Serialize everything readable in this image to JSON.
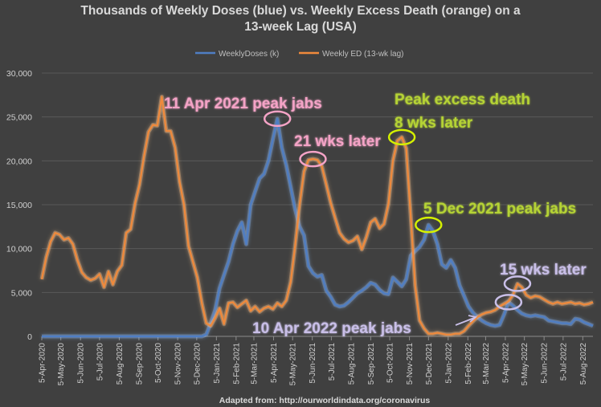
{
  "chart_data": {
    "type": "line",
    "title_line1": "Thousands of Weekly Doses (blue) vs. Weekly Excess Death (orange) on a",
    "title_line2": "13-week Lag (USA)",
    "source": "Adapted from: http://ourworldindata.org/coronavirus",
    "ylim": [
      0,
      30000
    ],
    "yticks": [
      "0",
      "5,000",
      "10,000",
      "15,000",
      "20,000",
      "25,000",
      "30,000"
    ],
    "ytick_values": [
      0,
      5000,
      10000,
      15000,
      20000,
      25000,
      30000
    ],
    "grid": "horizontal",
    "legend_position": "top-center",
    "x_start": "2020-04-05",
    "x_end": "2022-08-21",
    "xticks": [
      "5-Apr-2020",
      "5-May-2020",
      "5-Jun-2020",
      "5-Jul-2020",
      "5-Aug-2020",
      "5-Sep-2020",
      "5-Oct-2020",
      "5-Nov-2020",
      "5-Dec-2020",
      "5-Jan-2021",
      "5-Feb-2021",
      "5-Mar-2021",
      "5-Apr-2021",
      "5-May-2021",
      "5-Jun-2021",
      "5-Jul-2021",
      "5-Aug-2021",
      "5-Sep-2021",
      "5-Oct-2021",
      "5-Nov-2021",
      "5-Dec-2021",
      "5-Jan-2022",
      "5-Feb-2022",
      "5-Mar-2022",
      "5-Apr-2022",
      "5-May-2022",
      "5-Jun-2022",
      "5-Jul-2022",
      "5-Aug-2022"
    ],
    "xtick_dates": [
      "2020-04-05",
      "2020-05-05",
      "2020-06-05",
      "2020-07-05",
      "2020-08-05",
      "2020-09-05",
      "2020-10-05",
      "2020-11-05",
      "2020-12-05",
      "2021-01-05",
      "2021-02-05",
      "2021-03-05",
      "2021-04-05",
      "2021-05-05",
      "2021-06-05",
      "2021-07-05",
      "2021-08-05",
      "2021-09-05",
      "2021-10-05",
      "2021-11-05",
      "2021-12-05",
      "2022-01-05",
      "2022-02-05",
      "2022-03-05",
      "2022-04-05",
      "2022-05-05",
      "2022-06-05",
      "2022-07-05",
      "2022-08-05"
    ],
    "series": [
      {
        "name": "WeeklyDoses (k)",
        "color": "#4f7ec4",
        "glow": "#8ab4f0",
        "points": [
          [
            "2020-04-05",
            0
          ],
          [
            "2020-12-13",
            0
          ],
          [
            "2020-12-20",
            200
          ],
          [
            "2020-12-27",
            1500
          ],
          [
            "2021-01-03",
            3000
          ],
          [
            "2021-01-10",
            5500
          ],
          [
            "2021-01-17",
            7000
          ],
          [
            "2021-01-24",
            8500
          ],
          [
            "2021-01-31",
            10500
          ],
          [
            "2021-02-07",
            12000
          ],
          [
            "2021-02-14",
            13000
          ],
          [
            "2021-02-21",
            10500
          ],
          [
            "2021-02-28",
            15000
          ],
          [
            "2021-03-07",
            16500
          ],
          [
            "2021-03-14",
            18000
          ],
          [
            "2021-03-21",
            18500
          ],
          [
            "2021-03-28",
            20000
          ],
          [
            "2021-04-04",
            22500
          ],
          [
            "2021-04-11",
            24800
          ],
          [
            "2021-04-18",
            21500
          ],
          [
            "2021-04-25",
            19500
          ],
          [
            "2021-05-02",
            17000
          ],
          [
            "2021-05-09",
            14500
          ],
          [
            "2021-05-16",
            12500
          ],
          [
            "2021-05-23",
            11500
          ],
          [
            "2021-05-30",
            8000
          ],
          [
            "2021-06-06",
            7200
          ],
          [
            "2021-06-13",
            6800
          ],
          [
            "2021-06-20",
            7000
          ],
          [
            "2021-06-27",
            5200
          ],
          [
            "2021-07-04",
            4500
          ],
          [
            "2021-07-11",
            3600
          ],
          [
            "2021-07-18",
            3400
          ],
          [
            "2021-07-25",
            3500
          ],
          [
            "2021-08-01",
            3900
          ],
          [
            "2021-08-08",
            4400
          ],
          [
            "2021-08-15",
            4900
          ],
          [
            "2021-08-22",
            5200
          ],
          [
            "2021-08-29",
            5600
          ],
          [
            "2021-09-05",
            6100
          ],
          [
            "2021-09-12",
            5900
          ],
          [
            "2021-09-19",
            5300
          ],
          [
            "2021-09-26",
            4900
          ],
          [
            "2021-10-03",
            4800
          ],
          [
            "2021-10-10",
            6700
          ],
          [
            "2021-10-17",
            6200
          ],
          [
            "2021-10-24",
            5700
          ],
          [
            "2021-10-31",
            6500
          ],
          [
            "2021-11-07",
            9200
          ],
          [
            "2021-11-14",
            9700
          ],
          [
            "2021-11-21",
            10200
          ],
          [
            "2021-11-28",
            11000
          ],
          [
            "2021-12-05",
            12700
          ],
          [
            "2021-12-12",
            12000
          ],
          [
            "2021-12-19",
            10500
          ],
          [
            "2021-12-26",
            8200
          ],
          [
            "2022-01-02",
            7800
          ],
          [
            "2022-01-09",
            8700
          ],
          [
            "2022-01-16",
            7800
          ],
          [
            "2022-01-23",
            5800
          ],
          [
            "2022-01-30",
            4600
          ],
          [
            "2022-02-06",
            3400
          ],
          [
            "2022-02-13",
            2700
          ],
          [
            "2022-02-20",
            2200
          ],
          [
            "2022-02-27",
            1800
          ],
          [
            "2022-03-06",
            1500
          ],
          [
            "2022-03-13",
            1300
          ],
          [
            "2022-03-20",
            1200
          ],
          [
            "2022-03-27",
            1300
          ],
          [
            "2022-04-03",
            2500
          ],
          [
            "2022-04-10",
            3900
          ],
          [
            "2022-04-17",
            3500
          ],
          [
            "2022-04-24",
            3000
          ],
          [
            "2022-05-01",
            2600
          ],
          [
            "2022-05-08",
            2400
          ],
          [
            "2022-05-15",
            2300
          ],
          [
            "2022-05-22",
            2400
          ],
          [
            "2022-05-29",
            2300
          ],
          [
            "2022-06-05",
            2200
          ],
          [
            "2022-06-12",
            1800
          ],
          [
            "2022-06-19",
            1700
          ],
          [
            "2022-06-26",
            1600
          ],
          [
            "2022-07-03",
            1500
          ],
          [
            "2022-07-10",
            1500
          ],
          [
            "2022-07-17",
            1400
          ],
          [
            "2022-07-24",
            2000
          ],
          [
            "2022-07-31",
            1900
          ],
          [
            "2022-08-07",
            1600
          ],
          [
            "2022-08-14",
            1400
          ],
          [
            "2022-08-21",
            1200
          ]
        ]
      },
      {
        "name": "Weekly ED (13-wk lag)",
        "color": "#f08a3c",
        "glow": "#ffc48a",
        "points": [
          [
            "2020-04-05",
            6500
          ],
          [
            "2020-04-12",
            9000
          ],
          [
            "2020-04-19",
            10800
          ],
          [
            "2020-04-26",
            11800
          ],
          [
            "2020-05-03",
            11600
          ],
          [
            "2020-05-10",
            11000
          ],
          [
            "2020-05-17",
            11200
          ],
          [
            "2020-05-24",
            10500
          ],
          [
            "2020-05-31",
            8700
          ],
          [
            "2020-06-07",
            7300
          ],
          [
            "2020-06-14",
            6700
          ],
          [
            "2020-06-21",
            6400
          ],
          [
            "2020-06-28",
            6600
          ],
          [
            "2020-07-05",
            7100
          ],
          [
            "2020-07-12",
            5600
          ],
          [
            "2020-07-19",
            7400
          ],
          [
            "2020-07-26",
            5900
          ],
          [
            "2020-08-02",
            7400
          ],
          [
            "2020-08-09",
            8100
          ],
          [
            "2020-08-16",
            11800
          ],
          [
            "2020-08-23",
            12200
          ],
          [
            "2020-08-30",
            15200
          ],
          [
            "2020-09-06",
            17300
          ],
          [
            "2020-09-13",
            20500
          ],
          [
            "2020-09-20",
            23300
          ],
          [
            "2020-09-27",
            24100
          ],
          [
            "2020-10-04",
            24000
          ],
          [
            "2020-10-11",
            27300
          ],
          [
            "2020-10-18",
            23400
          ],
          [
            "2020-10-25",
            23400
          ],
          [
            "2020-11-01",
            21500
          ],
          [
            "2020-11-08",
            17600
          ],
          [
            "2020-11-15",
            15000
          ],
          [
            "2020-11-22",
            10300
          ],
          [
            "2020-11-29",
            8500
          ],
          [
            "2020-12-06",
            6700
          ],
          [
            "2020-12-13",
            3800
          ],
          [
            "2020-12-20",
            1500
          ],
          [
            "2020-12-27",
            1200
          ],
          [
            "2021-01-03",
            2100
          ],
          [
            "2021-01-10",
            3200
          ],
          [
            "2021-01-17",
            1400
          ],
          [
            "2021-01-24",
            3800
          ],
          [
            "2021-01-31",
            3900
          ],
          [
            "2021-02-07",
            3300
          ],
          [
            "2021-02-14",
            3700
          ],
          [
            "2021-02-21",
            4100
          ],
          [
            "2021-02-28",
            2900
          ],
          [
            "2021-03-07",
            3400
          ],
          [
            "2021-03-14",
            2800
          ],
          [
            "2021-03-21",
            3200
          ],
          [
            "2021-03-28",
            3400
          ],
          [
            "2021-04-04",
            3100
          ],
          [
            "2021-04-11",
            3800
          ],
          [
            "2021-04-18",
            3400
          ],
          [
            "2021-04-25",
            4100
          ],
          [
            "2021-05-02",
            6200
          ],
          [
            "2021-05-09",
            10300
          ],
          [
            "2021-05-16",
            15000
          ],
          [
            "2021-05-23",
            18800
          ],
          [
            "2021-05-30",
            20100
          ],
          [
            "2021-06-06",
            20200
          ],
          [
            "2021-06-13",
            20100
          ],
          [
            "2021-06-20",
            19400
          ],
          [
            "2021-06-27",
            17300
          ],
          [
            "2021-07-04",
            15200
          ],
          [
            "2021-07-11",
            13500
          ],
          [
            "2021-07-18",
            11800
          ],
          [
            "2021-07-25",
            11100
          ],
          [
            "2021-08-01",
            10700
          ],
          [
            "2021-08-08",
            10900
          ],
          [
            "2021-08-15",
            11400
          ],
          [
            "2021-08-22",
            9900
          ],
          [
            "2021-08-29",
            11300
          ],
          [
            "2021-09-05",
            13000
          ],
          [
            "2021-09-12",
            13400
          ],
          [
            "2021-09-19",
            12300
          ],
          [
            "2021-09-26",
            12800
          ],
          [
            "2021-10-03",
            15100
          ],
          [
            "2021-10-10",
            20000
          ],
          [
            "2021-10-17",
            22300
          ],
          [
            "2021-10-24",
            22700
          ],
          [
            "2021-10-31",
            21400
          ],
          [
            "2021-11-07",
            13700
          ],
          [
            "2021-11-14",
            5800
          ],
          [
            "2021-11-21",
            1800
          ],
          [
            "2021-11-28",
            900
          ],
          [
            "2021-12-05",
            300
          ],
          [
            "2021-12-12",
            300
          ],
          [
            "2021-12-19",
            400
          ],
          [
            "2021-12-26",
            300
          ],
          [
            "2022-01-02",
            200
          ],
          [
            "2022-01-09",
            200
          ],
          [
            "2022-01-16",
            300
          ],
          [
            "2022-01-23",
            300
          ],
          [
            "2022-01-30",
            600
          ],
          [
            "2022-02-06",
            1200
          ],
          [
            "2022-02-13",
            1700
          ],
          [
            "2022-02-20",
            2200
          ],
          [
            "2022-02-27",
            2500
          ],
          [
            "2022-03-06",
            2700
          ],
          [
            "2022-03-13",
            2800
          ],
          [
            "2022-03-20",
            3000
          ],
          [
            "2022-03-27",
            3400
          ],
          [
            "2022-04-03",
            3700
          ],
          [
            "2022-04-10",
            4000
          ],
          [
            "2022-04-17",
            4700
          ],
          [
            "2022-04-24",
            6000
          ],
          [
            "2022-05-01",
            5600
          ],
          [
            "2022-05-08",
            4700
          ],
          [
            "2022-05-15",
            4400
          ],
          [
            "2022-05-22",
            4600
          ],
          [
            "2022-05-29",
            4500
          ],
          [
            "2022-06-05",
            4200
          ],
          [
            "2022-06-12",
            3900
          ],
          [
            "2022-06-19",
            3700
          ],
          [
            "2022-06-26",
            3900
          ],
          [
            "2022-07-03",
            3700
          ],
          [
            "2022-07-10",
            3800
          ],
          [
            "2022-07-17",
            3900
          ],
          [
            "2022-07-24",
            3700
          ],
          [
            "2022-07-31",
            3800
          ],
          [
            "2022-08-07",
            3600
          ],
          [
            "2022-08-14",
            3700
          ],
          [
            "2022-08-21",
            3900
          ]
        ]
      }
    ],
    "annotations": [
      {
        "text": "11 Apr 2021 peak jabs",
        "color": "#f4a3c6"
      },
      {
        "text": "21 wks later",
        "color": "#f4a3c6"
      },
      {
        "text": "Peak excess death",
        "color": "#b5d335"
      },
      {
        "text": "8 wks later",
        "color": "#b5d335"
      },
      {
        "text": "5 Dec 2021 peak jabs",
        "color": "#b5d335"
      },
      {
        "text": "15 wks later",
        "color": "#c9bfe8"
      },
      {
        "text": "10 Apr 2022 peak jabs",
        "color": "#c9bfe8"
      }
    ],
    "highlight_circles": [
      {
        "series": 0,
        "date": "2021-04-11",
        "color": "#f4a3c6"
      },
      {
        "series": 1,
        "date": "2021-06-06",
        "color": "#f4a3c6"
      },
      {
        "series": 1,
        "date": "2021-10-24",
        "color": "#d4f000"
      },
      {
        "series": 0,
        "date": "2021-12-05",
        "color": "#d4f000"
      },
      {
        "series": 0,
        "date": "2022-04-10",
        "color": "#c9bfe8"
      },
      {
        "series": 1,
        "date": "2022-04-24",
        "color": "#c9bfe8"
      }
    ]
  }
}
